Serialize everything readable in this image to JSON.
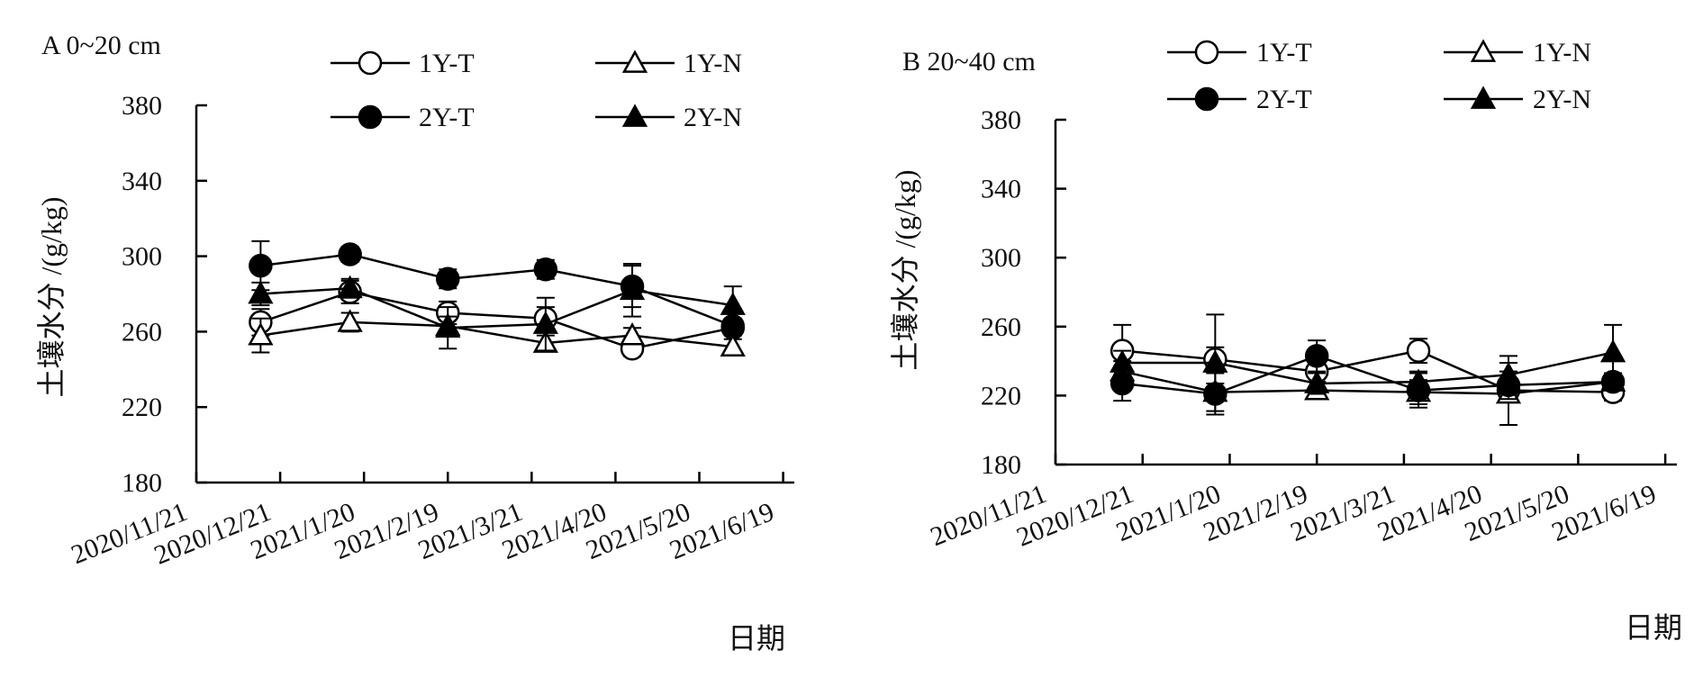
{
  "chart_data": [
    {
      "type": "line",
      "title": "A 0~20 cm",
      "xlabel": "日期",
      "ylabel": "土壤水分 /(g/kg)",
      "x_tick_labels": [
        "2020/11/21",
        "2020/12/21",
        "2021/1/20",
        "2021/2/19",
        "2021/3/21",
        "2021/4/20",
        "2021/5/20",
        "2021/6/19"
      ],
      "x_tick_dates": [
        "2020-11-21",
        "2020-12-21",
        "2021-01-20",
        "2021-02-19",
        "2021-03-21",
        "2021-04-20",
        "2021-05-20",
        "2021-06-19"
      ],
      "xlim": [
        "2020-11-21",
        "2021-06-23"
      ],
      "ylim": [
        180,
        380
      ],
      "y_ticks": [
        180,
        220,
        260,
        300,
        340,
        380
      ],
      "grid": false,
      "legend_position": "top-center",
      "x": [
        "2020-12-14",
        "2021-01-15",
        "2021-02-19",
        "2021-03-26",
        "2021-04-26",
        "2021-06-01"
      ],
      "series": [
        {
          "name": "1Y-T",
          "marker": "open-circle",
          "values": [
            265,
            281,
            270,
            267,
            251,
            262
          ],
          "errors": [
            7,
            6,
            6,
            6,
            4,
            4
          ]
        },
        {
          "name": "1Y-N",
          "marker": "open-triangle",
          "values": [
            258,
            265,
            263,
            254,
            258,
            252
          ],
          "errors": [
            9,
            5,
            5,
            4,
            4,
            4
          ]
        },
        {
          "name": "2Y-T",
          "marker": "filled-circle",
          "values": [
            295,
            301,
            288,
            293,
            284,
            263
          ],
          "errors": [
            13,
            4,
            5,
            5,
            11,
            4
          ]
        },
        {
          "name": "2Y-N",
          "marker": "filled-triangle",
          "values": [
            280,
            283,
            262,
            264,
            282,
            274
          ],
          "errors": [
            6,
            5,
            11,
            14,
            14,
            10
          ]
        }
      ]
    },
    {
      "type": "line",
      "title": "B 20~40 cm",
      "xlabel": "日期",
      "ylabel": "土壤水分 /(g/kg)",
      "x_tick_labels": [
        "2020/11/21",
        "2020/12/21",
        "2021/1/20",
        "2021/2/19",
        "2021/3/21",
        "2021/4/20",
        "2021/5/20",
        "2021/6/19"
      ],
      "x_tick_dates": [
        "2020-11-21",
        "2020-12-21",
        "2021-01-20",
        "2021-02-19",
        "2021-03-21",
        "2021-04-20",
        "2021-05-20",
        "2021-06-19"
      ],
      "xlim": [
        "2020-11-21",
        "2021-06-23"
      ],
      "ylim": [
        180,
        380
      ],
      "y_ticks": [
        180,
        220,
        260,
        300,
        340,
        380
      ],
      "grid": false,
      "legend_position": "top-center",
      "x": [
        "2020-12-14",
        "2021-01-15",
        "2021-02-19",
        "2021-03-26",
        "2021-04-26",
        "2021-06-01"
      ],
      "series": [
        {
          "name": "1Y-T",
          "marker": "open-circle",
          "values": [
            246,
            241,
            234,
            246,
            223,
            222
          ],
          "errors": [
            15,
            7,
            6,
            7,
            5,
            5
          ]
        },
        {
          "name": "1Y-N",
          "marker": "open-triangle",
          "values": [
            234,
            222,
            223,
            222,
            221,
            228
          ],
          "errors": [
            6,
            5,
            5,
            7,
            18,
            4
          ]
        },
        {
          "name": "2Y-T",
          "marker": "filled-circle",
          "values": [
            227,
            221,
            243,
            223,
            226,
            228
          ],
          "errors": [
            10,
            12,
            9,
            10,
            8,
            5
          ]
        },
        {
          "name": "2Y-N",
          "marker": "filled-triangle",
          "values": [
            239,
            239,
            227,
            228,
            232,
            245
          ],
          "errors": [
            7,
            28,
            6,
            6,
            11,
            16
          ]
        }
      ]
    }
  ]
}
